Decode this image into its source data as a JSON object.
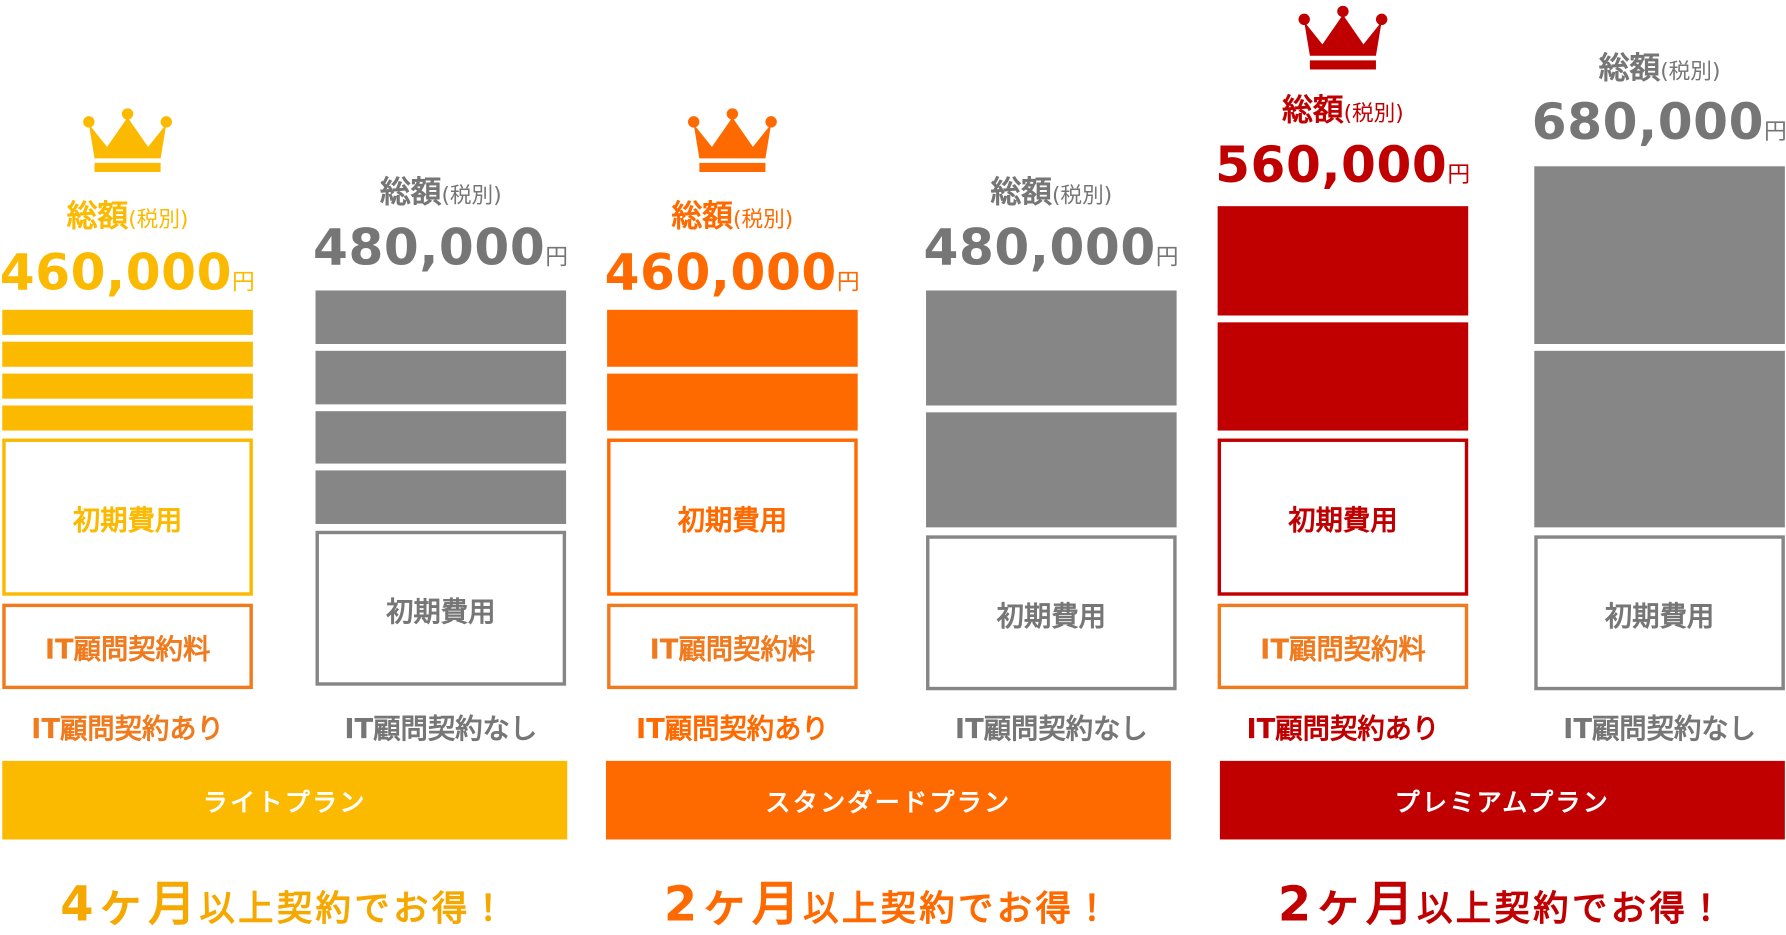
{
  "plans": [
    {
      "name": "ライトプラン",
      "offer": {
        "months": "4ヶ月",
        "text": "以上契約でお得！"
      },
      "with_contract": {
        "total_label": "総額",
        "tax_note": "(税別)",
        "price": "460,000",
        "unit": "円",
        "blocks": [
          "初期費用",
          "IT顧問契約料"
        ],
        "caption": "IT顧問契約あり"
      },
      "without_contract": {
        "total_label": "総額",
        "tax_note": "(税別)",
        "price": "480,000",
        "unit": "円",
        "blocks": [
          "初期費用"
        ],
        "caption": "IT顧問契約なし"
      }
    },
    {
      "name": "スタンダードプラン",
      "offer": {
        "months": "2ヶ月",
        "text": "以上契約でお得！"
      },
      "with_contract": {
        "total_label": "総額",
        "tax_note": "(税別)",
        "price": "460,000",
        "unit": "円",
        "blocks": [
          "初期費用",
          "IT顧問契約料"
        ],
        "caption": "IT顧問契約あり"
      },
      "without_contract": {
        "total_label": "総額",
        "tax_note": "(税別)",
        "price": "480,000",
        "unit": "円",
        "blocks": [
          "初期費用"
        ],
        "caption": "IT顧問契約なし"
      }
    },
    {
      "name": "プレミアムプラン",
      "offer": {
        "months": "2ヶ月",
        "text": "以上契約でお得！"
      },
      "with_contract": {
        "total_label": "総額",
        "tax_note": "(税別)",
        "price": "560,000",
        "unit": "円",
        "blocks": [
          "初期費用",
          "IT顧問契約料"
        ],
        "caption": "IT顧問契約あり"
      },
      "without_contract": {
        "total_label": "総額",
        "tax_note": "(税別)",
        "price": "680,000",
        "unit": "円",
        "blocks": [
          "初期費用"
        ],
        "caption": "IT顧問契約なし"
      }
    }
  ]
}
